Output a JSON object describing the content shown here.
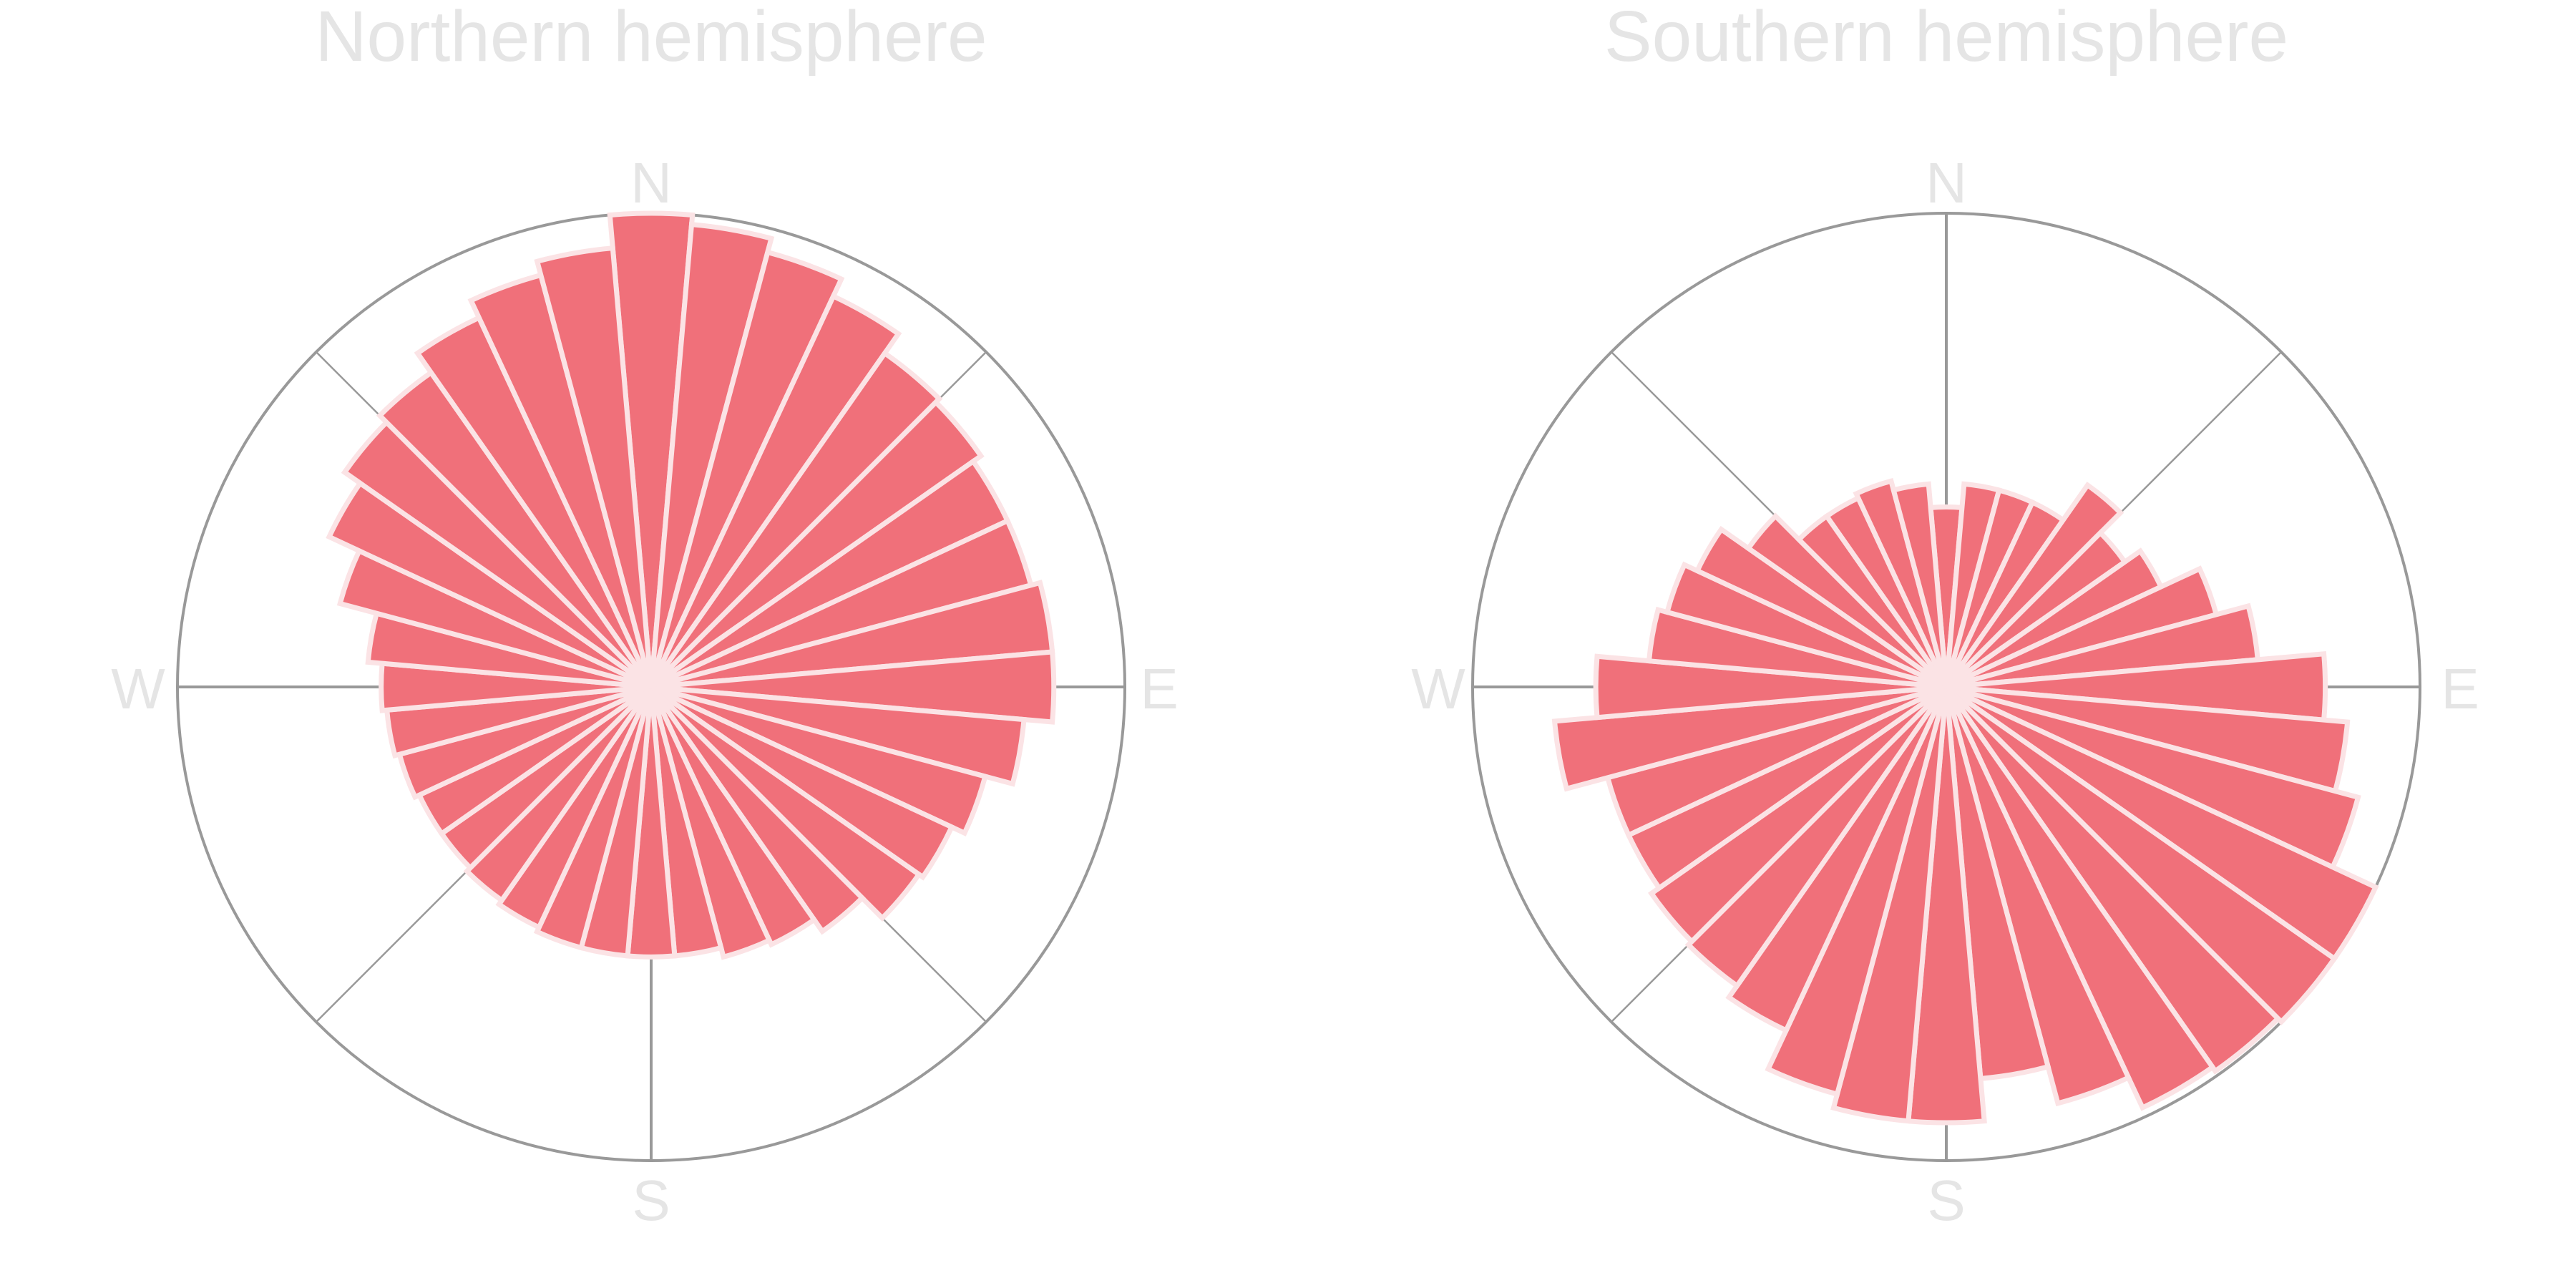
{
  "colors": {
    "bar_fill": "#f0707a",
    "bar_stroke": "#fbe3e5",
    "frame": "#999999",
    "label": "#e5e5e5"
  },
  "chart_data": [
    {
      "type": "bar",
      "subtype": "polar",
      "title": "Northern hemisphere",
      "direction_labels": [
        "N",
        "E",
        "S",
        "W"
      ],
      "rlim": [
        0,
        1.0
      ],
      "angles_deg": [
        0,
        10,
        20,
        30,
        40,
        50,
        60,
        70,
        80,
        90,
        100,
        110,
        120,
        130,
        140,
        150,
        160,
        170,
        180,
        190,
        200,
        210,
        220,
        230,
        240,
        250,
        260,
        270,
        280,
        290,
        300,
        310,
        320,
        330,
        340,
        350
      ],
      "values": [
        1.0,
        0.98,
        0.95,
        0.91,
        0.86,
        0.85,
        0.83,
        0.83,
        0.85,
        0.85,
        0.79,
        0.73,
        0.7,
        0.69,
        0.63,
        0.6,
        0.59,
        0.57,
        0.57,
        0.57,
        0.57,
        0.56,
        0.55,
        0.54,
        0.54,
        0.55,
        0.56,
        0.57,
        0.6,
        0.68,
        0.75,
        0.79,
        0.81,
        0.86,
        0.9,
        0.93
      ]
    },
    {
      "type": "bar",
      "subtype": "polar",
      "title": "Southern hemisphere",
      "direction_labels": [
        "N",
        "E",
        "S",
        "W"
      ],
      "rlim": [
        0,
        1.0
      ],
      "angles_deg": [
        0,
        10,
        20,
        30,
        40,
        50,
        60,
        70,
        80,
        90,
        100,
        110,
        120,
        130,
        140,
        150,
        160,
        170,
        180,
        190,
        200,
        210,
        220,
        230,
        240,
        250,
        260,
        270,
        280,
        290,
        300,
        310,
        320,
        330,
        340,
        350
      ],
      "values": [
        0.38,
        0.43,
        0.43,
        0.43,
        0.52,
        0.46,
        0.5,
        0.59,
        0.66,
        0.8,
        0.85,
        0.9,
        1.0,
        1.0,
        0.99,
        0.98,
        0.91,
        0.83,
        0.92,
        0.92,
        0.89,
        0.8,
        0.77,
        0.76,
        0.74,
        0.74,
        0.83,
        0.74,
        0.63,
        0.61,
        0.58,
        0.51,
        0.44,
        0.44,
        0.45,
        0.43
      ]
    }
  ]
}
